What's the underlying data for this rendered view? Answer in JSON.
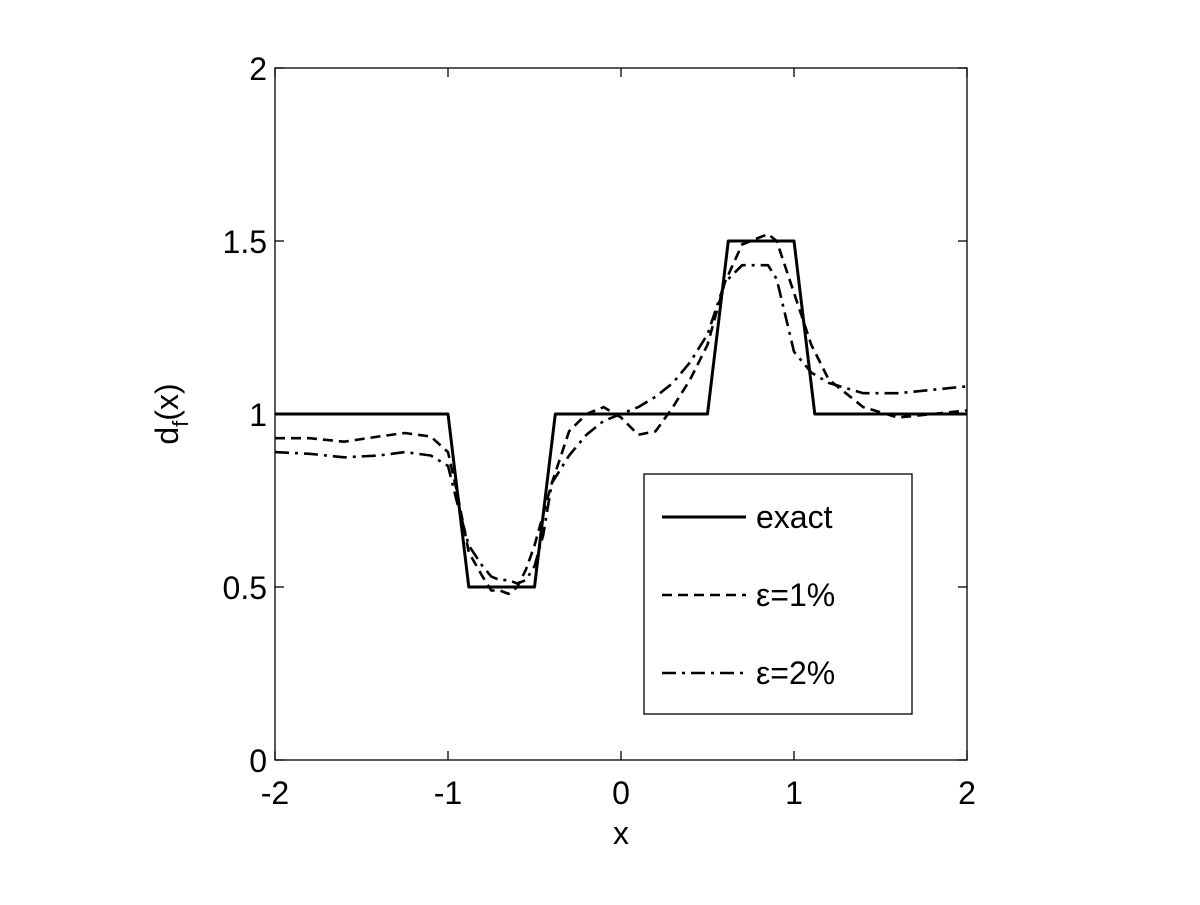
{
  "chart_data": {
    "type": "line",
    "xlabel": "x",
    "ylabel": {
      "main": "d",
      "subscript": "f",
      "suffix": "(x)"
    },
    "xlim": [
      -2,
      2
    ],
    "ylim": [
      0,
      2
    ],
    "xticks": [
      -2,
      -1,
      0,
      1,
      2
    ],
    "yticks": [
      0,
      0.5,
      1,
      1.5,
      2
    ],
    "xtick_labels": [
      "-2",
      "-1",
      "0",
      "1",
      "2"
    ],
    "ytick_labels": [
      "0",
      "0.5",
      "1",
      "1.5",
      "2"
    ],
    "grid": false,
    "legend_position": "lower-right",
    "line_color": "#000000",
    "series": [
      {
        "name": "exact",
        "style": "solid",
        "x": [
          -2,
          -1,
          -0.88,
          -0.5,
          -0.38,
          0.5,
          0.62,
          1.0,
          1.12,
          2
        ],
        "y": [
          1,
          1,
          0.5,
          0.5,
          1,
          1,
          1.5,
          1.5,
          1,
          1
        ]
      },
      {
        "name": "ε=1%",
        "style": "dashed",
        "x": [
          -2,
          -1.8,
          -1.6,
          -1.4,
          -1.25,
          -1.1,
          -1.0,
          -0.95,
          -0.88,
          -0.8,
          -0.75,
          -0.7,
          -0.65,
          -0.6,
          -0.55,
          -0.5,
          -0.45,
          -0.4,
          -0.3,
          -0.2,
          -0.1,
          0.0,
          0.1,
          0.2,
          0.3,
          0.4,
          0.5,
          0.6,
          0.7,
          0.8,
          0.85,
          0.9,
          1.0,
          1.1,
          1.2,
          1.4,
          1.6,
          1.8,
          2.0
        ],
        "y": [
          0.93,
          0.93,
          0.92,
          0.935,
          0.945,
          0.935,
          0.89,
          0.78,
          0.6,
          0.53,
          0.49,
          0.49,
          0.48,
          0.5,
          0.55,
          0.62,
          0.71,
          0.8,
          0.95,
          1.0,
          1.02,
          0.99,
          0.94,
          0.95,
          1.02,
          1.1,
          1.2,
          1.38,
          1.49,
          1.51,
          1.52,
          1.5,
          1.35,
          1.2,
          1.1,
          1.02,
          0.99,
          1.0,
          1.01
        ]
      },
      {
        "name": "ε=2%",
        "style": "dashdot",
        "x": [
          -2,
          -1.8,
          -1.6,
          -1.4,
          -1.25,
          -1.1,
          -1.0,
          -0.95,
          -0.88,
          -0.8,
          -0.75,
          -0.7,
          -0.65,
          -0.6,
          -0.55,
          -0.5,
          -0.45,
          -0.4,
          -0.3,
          -0.2,
          -0.1,
          0.0,
          0.1,
          0.2,
          0.3,
          0.4,
          0.5,
          0.6,
          0.7,
          0.8,
          0.85,
          0.9,
          1.0,
          1.1,
          1.2,
          1.4,
          1.6,
          1.8,
          2.0
        ],
        "y": [
          0.89,
          0.885,
          0.875,
          0.88,
          0.89,
          0.88,
          0.85,
          0.75,
          0.62,
          0.56,
          0.53,
          0.52,
          0.52,
          0.51,
          0.52,
          0.56,
          0.65,
          0.8,
          0.88,
          0.94,
          0.98,
          1.0,
          1.02,
          1.05,
          1.09,
          1.15,
          1.23,
          1.38,
          1.43,
          1.43,
          1.43,
          1.39,
          1.18,
          1.12,
          1.09,
          1.06,
          1.06,
          1.07,
          1.08
        ]
      }
    ]
  }
}
